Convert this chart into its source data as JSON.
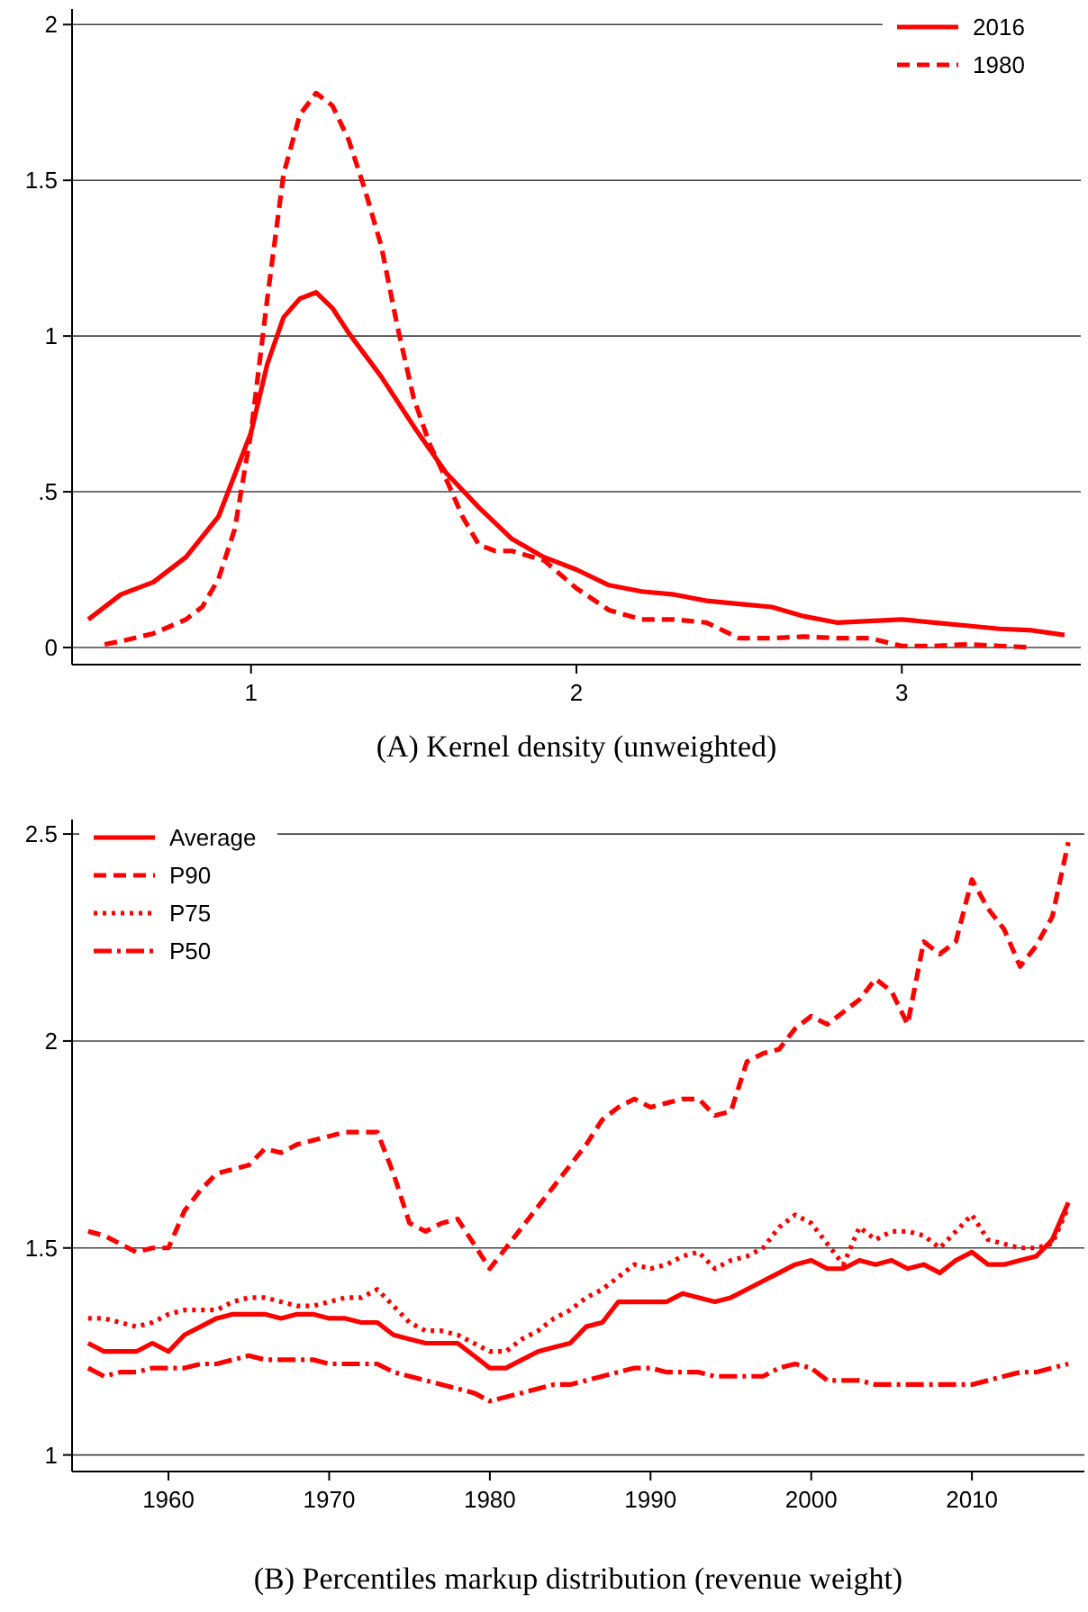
{
  "chart_data": [
    {
      "type": "line",
      "title": "(A) Kernel density (unweighted)",
      "xlim": [
        0.45,
        3.55
      ],
      "ylim": [
        -0.055,
        2.05
      ],
      "xticks": [
        1,
        2,
        3
      ],
      "yticks": [
        0,
        {
          "value": 0.5,
          "label": ".5"
        },
        1,
        1.5,
        2
      ],
      "grid": "y",
      "legend": "top right",
      "series": [
        {
          "name": "2016",
          "color": "#ff0000",
          "line_style": "solid",
          "x": [
            0.5,
            0.6,
            0.7,
            0.8,
            0.9,
            1.0,
            1.05,
            1.1,
            1.15,
            1.2,
            1.25,
            1.3,
            1.4,
            1.5,
            1.6,
            1.7,
            1.8,
            1.9,
            2.0,
            2.1,
            2.2,
            2.3,
            2.4,
            2.5,
            2.6,
            2.7,
            2.8,
            2.9,
            3.0,
            3.1,
            3.2,
            3.3,
            3.4,
            3.5
          ],
          "values": [
            0.09,
            0.17,
            0.21,
            0.29,
            0.42,
            0.69,
            0.91,
            1.06,
            1.12,
            1.14,
            1.09,
            1.01,
            0.87,
            0.71,
            0.56,
            0.45,
            0.35,
            0.29,
            0.25,
            0.2,
            0.18,
            0.17,
            0.15,
            0.14,
            0.13,
            0.1,
            0.08,
            0.085,
            0.09,
            0.08,
            0.07,
            0.06,
            0.055,
            0.04
          ]
        },
        {
          "name": "1980",
          "color": "#ff0000",
          "line_style": "dashed",
          "x": [
            0.55,
            0.6,
            0.7,
            0.8,
            0.85,
            0.9,
            0.95,
            1.0,
            1.05,
            1.1,
            1.15,
            1.2,
            1.25,
            1.3,
            1.35,
            1.4,
            1.45,
            1.5,
            1.55,
            1.6,
            1.65,
            1.7,
            1.75,
            1.8,
            1.9,
            2.0,
            2.1,
            2.2,
            2.3,
            2.4,
            2.5,
            2.6,
            2.7,
            2.8,
            2.9,
            3.0,
            3.1,
            3.2,
            3.3,
            3.4
          ],
          "values": [
            0.01,
            0.02,
            0.045,
            0.09,
            0.13,
            0.22,
            0.38,
            0.69,
            1.12,
            1.52,
            1.71,
            1.78,
            1.74,
            1.63,
            1.47,
            1.29,
            1.03,
            0.8,
            0.65,
            0.54,
            0.42,
            0.33,
            0.31,
            0.31,
            0.28,
            0.19,
            0.12,
            0.09,
            0.09,
            0.08,
            0.03,
            0.03,
            0.035,
            0.03,
            0.03,
            0.005,
            0.005,
            0.01,
            0.005,
            0
          ]
        }
      ]
    },
    {
      "type": "line",
      "title": "(B) Percentiles markup distribution (revenue weight)",
      "xlim": [
        1954,
        2017
      ],
      "ylim": [
        0.96,
        2.535
      ],
      "xticks": [
        1960,
        1970,
        1980,
        1990,
        2000,
        2010
      ],
      "yticks": [
        1,
        1.5,
        2,
        2.5
      ],
      "grid": "y",
      "legend": "top left",
      "x": [
        1955,
        1956,
        1957,
        1958,
        1959,
        1960,
        1961,
        1962,
        1963,
        1964,
        1965,
        1966,
        1967,
        1968,
        1969,
        1970,
        1971,
        1972,
        1973,
        1974,
        1975,
        1976,
        1977,
        1978,
        1979,
        1980,
        1981,
        1982,
        1983,
        1984,
        1985,
        1986,
        1987,
        1988,
        1989,
        1990,
        1991,
        1992,
        1993,
        1994,
        1995,
        1996,
        1997,
        1998,
        1999,
        2000,
        2001,
        2002,
        2003,
        2004,
        2005,
        2006,
        2007,
        2008,
        2009,
        2010,
        2011,
        2012,
        2013,
        2014,
        2015,
        2016
      ],
      "series": [
        {
          "name": "Average",
          "color": "#ff0000",
          "line_style": "solid",
          "values": [
            1.27,
            1.25,
            1.25,
            1.25,
            1.27,
            1.25,
            1.29,
            1.31,
            1.33,
            1.34,
            1.34,
            1.34,
            1.33,
            1.34,
            1.34,
            1.33,
            1.33,
            1.32,
            1.32,
            1.29,
            1.28,
            1.27,
            1.27,
            1.27,
            1.24,
            1.21,
            1.21,
            1.23,
            1.25,
            1.26,
            1.27,
            1.31,
            1.32,
            1.37,
            1.37,
            1.37,
            1.37,
            1.39,
            1.38,
            1.37,
            1.38,
            1.4,
            1.42,
            1.44,
            1.46,
            1.47,
            1.45,
            1.45,
            1.47,
            1.46,
            1.47,
            1.45,
            1.46,
            1.44,
            1.47,
            1.49,
            1.46,
            1.46,
            1.47,
            1.48,
            1.52,
            1.61
          ]
        },
        {
          "name": "P90",
          "color": "#ff0000",
          "line_style": "dashed",
          "values": [
            1.54,
            1.53,
            1.51,
            1.49,
            1.5,
            1.5,
            1.59,
            1.64,
            1.68,
            1.69,
            1.7,
            1.74,
            1.73,
            1.75,
            1.76,
            1.77,
            1.78,
            1.78,
            1.78,
            1.68,
            1.56,
            1.54,
            1.56,
            1.57,
            1.51,
            1.45,
            1.5,
            1.55,
            1.6,
            1.65,
            1.7,
            1.75,
            1.81,
            1.84,
            1.86,
            1.84,
            1.85,
            1.86,
            1.86,
            1.82,
            1.83,
            1.95,
            1.97,
            1.98,
            2.03,
            2.06,
            2.04,
            2.07,
            2.1,
            2.15,
            2.12,
            2.04,
            2.24,
            2.21,
            2.24,
            2.39,
            2.32,
            2.27,
            2.18,
            2.23,
            2.3,
            2.48
          ]
        },
        {
          "name": "P75",
          "color": "#ff0000",
          "line_style": "dotted",
          "values": [
            1.33,
            1.33,
            1.32,
            1.31,
            1.32,
            1.34,
            1.35,
            1.35,
            1.35,
            1.37,
            1.38,
            1.38,
            1.37,
            1.36,
            1.36,
            1.37,
            1.38,
            1.38,
            1.4,
            1.36,
            1.32,
            1.3,
            1.3,
            1.29,
            1.27,
            1.25,
            1.25,
            1.28,
            1.3,
            1.33,
            1.35,
            1.38,
            1.4,
            1.43,
            1.46,
            1.45,
            1.46,
            1.48,
            1.49,
            1.45,
            1.47,
            1.48,
            1.5,
            1.55,
            1.58,
            1.56,
            1.51,
            1.46,
            1.55,
            1.52,
            1.54,
            1.54,
            1.53,
            1.5,
            1.54,
            1.58,
            1.52,
            1.51,
            1.5,
            1.5,
            1.51,
            1.6
          ]
        },
        {
          "name": "P50",
          "color": "#ff0000",
          "line_style": "dashdot",
          "values": [
            1.21,
            1.19,
            1.2,
            1.2,
            1.21,
            1.21,
            1.21,
            1.22,
            1.22,
            1.23,
            1.24,
            1.23,
            1.23,
            1.23,
            1.23,
            1.22,
            1.22,
            1.22,
            1.22,
            1.2,
            1.19,
            1.18,
            1.17,
            1.16,
            1.15,
            1.13,
            1.14,
            1.15,
            1.16,
            1.17,
            1.17,
            1.18,
            1.19,
            1.2,
            1.21,
            1.21,
            1.2,
            1.2,
            1.2,
            1.19,
            1.19,
            1.19,
            1.19,
            1.21,
            1.22,
            1.21,
            1.18,
            1.18,
            1.18,
            1.17,
            1.17,
            1.17,
            1.17,
            1.17,
            1.17,
            1.17,
            1.18,
            1.19,
            1.2,
            1.2,
            1.21,
            1.22
          ]
        }
      ]
    }
  ]
}
